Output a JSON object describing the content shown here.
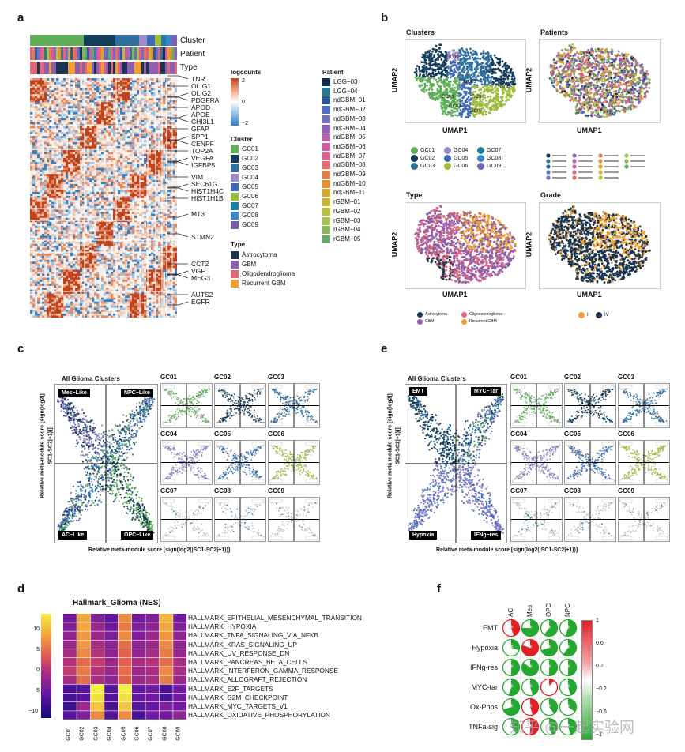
{
  "panel_letters": {
    "a": "a",
    "b": "b",
    "c": "c",
    "d": "d",
    "e": "e",
    "f": "f"
  },
  "heatmap_a": {
    "track_labels": [
      "Cluster",
      "Patient",
      "Type"
    ],
    "genes": [
      {
        "name": "TNR",
        "y": 100
      },
      {
        "name": "OLIG1",
        "y": 109
      },
      {
        "name": "OLIG2",
        "y": 118
      },
      {
        "name": "PDGFRA",
        "y": 127
      },
      {
        "name": "APOD",
        "y": 136
      },
      {
        "name": "APOE",
        "y": 145
      },
      {
        "name": "CHI3L1",
        "y": 154
      },
      {
        "name": "GFAP",
        "y": 163
      },
      {
        "name": "SPP1",
        "y": 173
      },
      {
        "name": "CENPF",
        "y": 182
      },
      {
        "name": "TOP2A",
        "y": 191
      },
      {
        "name": "VEGFA",
        "y": 200
      },
      {
        "name": "IGFBP5",
        "y": 209
      },
      {
        "name": "VIM",
        "y": 224
      },
      {
        "name": "SEC61G",
        "y": 233
      },
      {
        "name": "HIST1H4C",
        "y": 242
      },
      {
        "name": "HIST1H1B",
        "y": 251
      },
      {
        "name": "MT3",
        "y": 271
      },
      {
        "name": "STMN2",
        "y": 300
      },
      {
        "name": "CCT2",
        "y": 334
      },
      {
        "name": "VGF",
        "y": 343
      },
      {
        "name": "MEG3",
        "y": 352
      },
      {
        "name": "AUTS2",
        "y": 373
      },
      {
        "name": "EGFR",
        "y": 382
      }
    ],
    "logcounts_title": "logcounts",
    "logcounts_ticks": [
      "2",
      "0",
      "−2"
    ],
    "cluster_legend_title": "Cluster",
    "clusters": [
      "GC01",
      "GC02",
      "GC03",
      "GC04",
      "GC05",
      "GC06",
      "GC07",
      "GC08",
      "GC09"
    ],
    "type_legend_title": "Type",
    "types": [
      "Astrocytoma",
      "GBM",
      "Oligodendroglioma",
      "Recurrent GBM"
    ],
    "patient_legend_title": "Patient",
    "patients": [
      "LGG−03",
      "LGG−04",
      "ndGBM−01",
      "ndGBM−02",
      "ndGBM−03",
      "ndGBM−04",
      "ndGBM−05",
      "ndGBM−06",
      "ndGBM−07",
      "ndGBM−08",
      "ndGBM−09",
      "ndGBM−10",
      "ndGBM−11",
      "rGBM−01",
      "rGBM−02",
      "rGBM−03",
      "rGBM−04",
      "rGBM−05"
    ]
  },
  "umap_b": {
    "titles": [
      "Clusters",
      "Patients",
      "Type",
      "Grade"
    ],
    "xlabel": "UMAP1",
    "ylabel": "UMAP2",
    "cluster_labels": [
      "GC09",
      "GC08",
      "GC02",
      "GC03",
      "GC05",
      "GC01",
      "GC06",
      "GC04",
      "GC07"
    ],
    "cluster_legend": [
      "GC01",
      "GC02",
      "GC03",
      "GC04",
      "GC05",
      "GC06",
      "GC07",
      "GC08",
      "GC09"
    ],
    "type_legend": [
      "Astrocytoma",
      "GBM",
      "Oligodendroglioma",
      "Recurrent GBM"
    ],
    "grade_legend": [
      "II",
      "IV"
    ]
  },
  "scatter_c": {
    "main_title": "All Glioma Clusters",
    "corners": [
      "Mes−Like",
      "NPC−Like",
      "AC−Like",
      "OPC−Like"
    ],
    "ylabel_line1": "Relative meta-module score [sign(log2(|",
    "ylabel_line2": "SC1-SC2|+1))]",
    "xlabel": "Relative meta-module score [sign(log2(|SC1-SC2|+1))]",
    "grid_titles": [
      "GC01",
      "GC02",
      "GC03",
      "GC04",
      "GC05",
      "GC06",
      "GC07",
      "GC08",
      "GC09"
    ]
  },
  "scatter_e": {
    "main_title": "All Glioma Clusters",
    "corners": [
      "EMT",
      "MYC−Tar",
      "Hypoxia",
      "IFNg−res"
    ],
    "ylabel_line1": "Relative meta-module score [sign(log2(|",
    "ylabel_line2": "SC1-SC2|+1))]",
    "xlabel": "Relative meta-module score [sign(log2(|SC1-SC2|+1))]",
    "grid_titles": [
      "GC01",
      "GC02",
      "GC03",
      "GC04",
      "GC05",
      "GC06",
      "GC07",
      "GC08",
      "GC09"
    ]
  },
  "heatmap_d": {
    "title": "Hallmark_Glioma (NES)",
    "colorbar_ticks": [
      "10",
      "5",
      "0",
      "−5",
      "−10"
    ],
    "columns": [
      "GC01",
      "GC02",
      "GC03",
      "GC04",
      "GC05",
      "GC06",
      "GC07",
      "GC08",
      "GC09"
    ],
    "rows": [
      {
        "label": "HALLMARK_EPITHELIAL_MESENCHYMAL_TRANSITION",
        "values": [
          -6,
          8,
          -5,
          -7,
          6,
          -6,
          -5,
          9,
          -6
        ]
      },
      {
        "label": "HALLMARK_HYPOXIA",
        "values": [
          -5,
          8,
          -3,
          -6,
          5,
          -5,
          -4,
          8,
          -5
        ]
      },
      {
        "label": "HALLMARK_TNFA_SIGNALING_VIA_NFKB",
        "values": [
          -4,
          7,
          -3,
          -5,
          6,
          -5,
          -3,
          7,
          -4
        ]
      },
      {
        "label": "HALLMARK_KRAS_SIGNALING_UP",
        "values": [
          -3,
          7,
          -2,
          -4,
          4,
          -4,
          -3,
          6,
          -4
        ]
      },
      {
        "label": "HALLMARK_UV_RESPONSE_DN",
        "values": [
          -2,
          6,
          -1,
          -4,
          3,
          -4,
          -2,
          5,
          -3
        ]
      },
      {
        "label": "HALLMARK_PANCREAS_BETA_CELLS",
        "values": [
          -1,
          4,
          0,
          -3,
          3,
          -2,
          -1,
          4,
          -2
        ]
      },
      {
        "label": "HALLMARK_INTERFERON_GAMMA_RESPONSE",
        "values": [
          0,
          5,
          -1,
          -3,
          4,
          -3,
          -2,
          6,
          -2
        ]
      },
      {
        "label": "HALLMARK_ALLOGRAFT_REJECTION",
        "values": [
          -2,
          4,
          -2,
          -4,
          3,
          -3,
          -2,
          5,
          -3
        ]
      },
      {
        "label": "HALLMARK_E2F_TARGETS",
        "values": [
          -9,
          -8,
          13,
          -8,
          13,
          -7,
          -6,
          -9,
          -6
        ]
      },
      {
        "label": "HALLMARK_G2M_CHECKPOINT",
        "values": [
          -9,
          -8,
          12,
          -8,
          12,
          -7,
          -6,
          -9,
          -6
        ]
      },
      {
        "label": "HALLMARK_MYC_TARGETS_V1",
        "values": [
          -10,
          -3,
          10,
          -9,
          10,
          -8,
          -7,
          -5,
          -6
        ]
      },
      {
        "label": "HALLMARK_OXIDATIVE_PHOSPHORYLATION",
        "values": [
          -8,
          -5,
          6,
          -8,
          6,
          -9,
          -6,
          -6,
          -4
        ]
      }
    ]
  },
  "corr_f": {
    "columns": [
      "AC",
      "Mes",
      "OPC",
      "NPC"
    ],
    "rows": [
      {
        "label": "EMT",
        "values": [
          0.45,
          -0.75,
          -0.6,
          -0.55
        ]
      },
      {
        "label": "Hypoxia",
        "values": [
          -0.3,
          0.8,
          -0.7,
          -0.6
        ]
      },
      {
        "label": "IFNg-res",
        "values": [
          -0.5,
          -0.85,
          -0.5,
          -0.5
        ]
      },
      {
        "label": "MYC-tar",
        "values": [
          -0.55,
          -0.45,
          0.1,
          -0.45
        ]
      },
      {
        "label": "Ox-Phos",
        "values": [
          -0.7,
          0.45,
          -0.4,
          -0.35
        ]
      },
      {
        "label": "TNFa-sig",
        "values": [
          -0.4,
          0.5,
          -0.45,
          -0.45
        ]
      }
    ],
    "colorbar_ticks": [
      "1",
      "0.6",
      "0.2",
      "−0.2",
      "−0.6",
      "−1"
    ],
    "watermark": "知乎 @一起实验网"
  }
}
